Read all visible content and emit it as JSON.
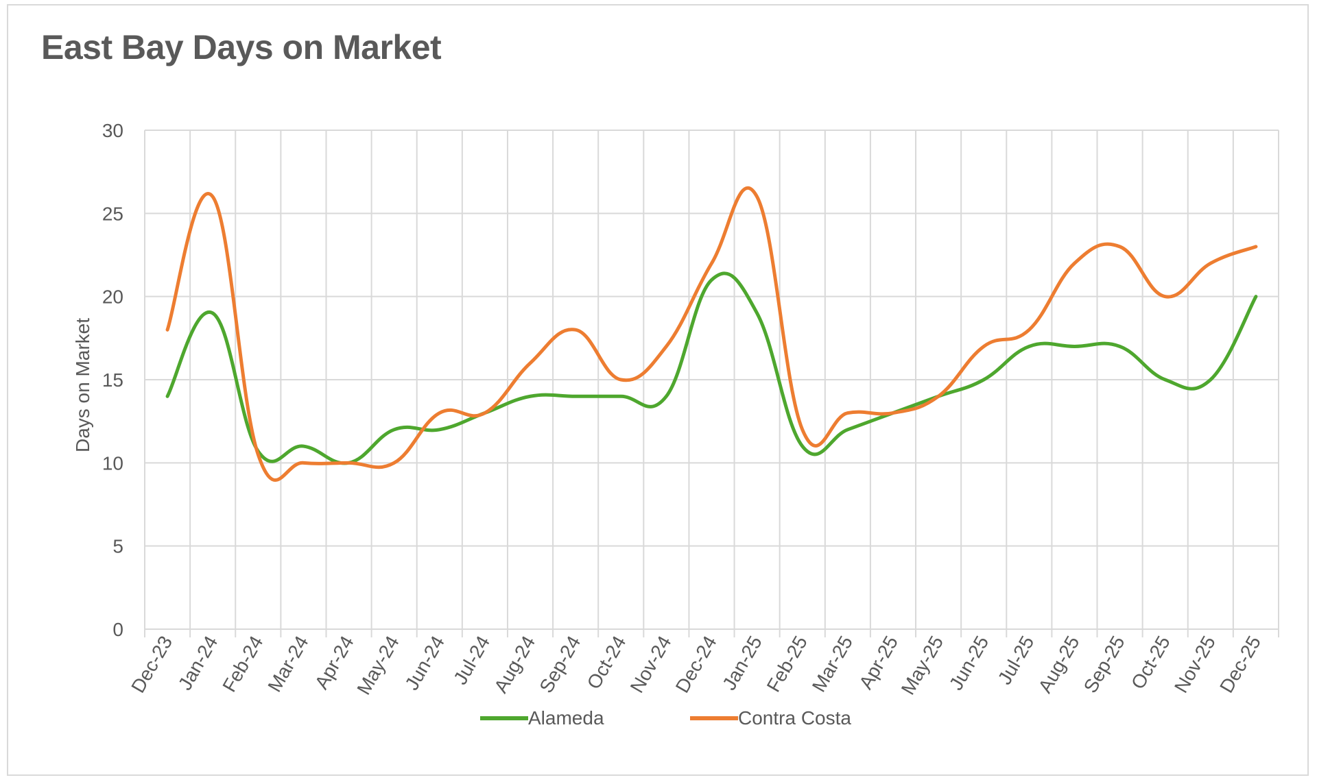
{
  "chart_data": {
    "type": "line",
    "title": "East Bay Days on Market",
    "xlabel": "",
    "ylabel": "Days on Market",
    "ylim": [
      0,
      30
    ],
    "yticks": [
      0,
      5,
      10,
      15,
      20,
      25,
      30
    ],
    "grid": true,
    "legend_position": "bottom",
    "categories": [
      "Dec-23",
      "Jan-24",
      "Feb-24",
      "Mar-24",
      "Apr-24",
      "May-24",
      "Jun-24",
      "Jul-24",
      "Aug-24",
      "Sep-24",
      "Oct-24",
      "Nov-24",
      "Dec-24",
      "Jan-25",
      "Feb-25",
      "Mar-25",
      "Apr-25",
      "May-25",
      "Jun-25",
      "Jul-25",
      "Aug-25",
      "Sep-25",
      "Oct-25",
      "Nov-25",
      "Dec-25"
    ],
    "series": [
      {
        "name": "Alameda",
        "color": "#4ea72e",
        "values": [
          14,
          19,
          10.7,
          11,
          10,
          12,
          12,
          13,
          14,
          14,
          14,
          14,
          21,
          19,
          11,
          12,
          13,
          14,
          15,
          17,
          17,
          17,
          15,
          15,
          20
        ]
      },
      {
        "name": "Contra Costa",
        "color": "#ed7d31",
        "values": [
          18,
          26,
          10.5,
          10,
          10,
          10,
          13,
          13,
          16,
          18,
          15,
          17,
          22,
          26,
          12,
          13,
          13,
          14,
          17,
          18,
          22,
          23,
          20,
          22,
          23
        ]
      }
    ]
  }
}
